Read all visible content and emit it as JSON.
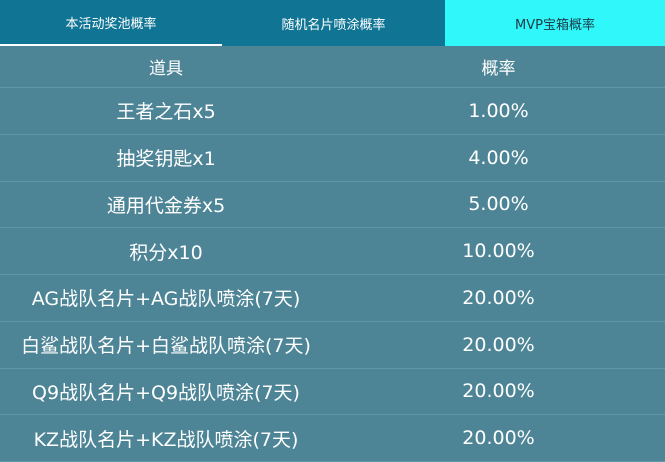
{
  "tabs": [
    {
      "label": "本活动奖池概率"
    },
    {
      "label": "随机名片喷涂概率"
    },
    {
      "label": "MVP宝箱概率"
    }
  ],
  "table": {
    "headers": [
      "道具",
      "概率"
    ],
    "rows": [
      {
        "item": "王者之石x5",
        "prob": "1.00%"
      },
      {
        "item": "抽奖钥匙x1",
        "prob": "4.00%"
      },
      {
        "item": "通用代金券x5",
        "prob": "5.00%"
      },
      {
        "item": "积分x10",
        "prob": "10.00%"
      },
      {
        "item": "AG战队名片+AG战队喷涂(7天)",
        "prob": "20.00%"
      },
      {
        "item": "白鲨战队名片+白鲨战队喷涂(7天)",
        "prob": "20.00%"
      },
      {
        "item": "Q9战队名片+Q9战队喷涂(7天)",
        "prob": "20.00%"
      },
      {
        "item": "KZ战队名片+KZ战队喷涂(7天)",
        "prob": "20.00%"
      }
    ]
  },
  "colors": {
    "tab_bar": "#107595",
    "active_tab": "#2ff7fa",
    "table_bg": "#4d8597",
    "divider": "#5d98a9"
  }
}
